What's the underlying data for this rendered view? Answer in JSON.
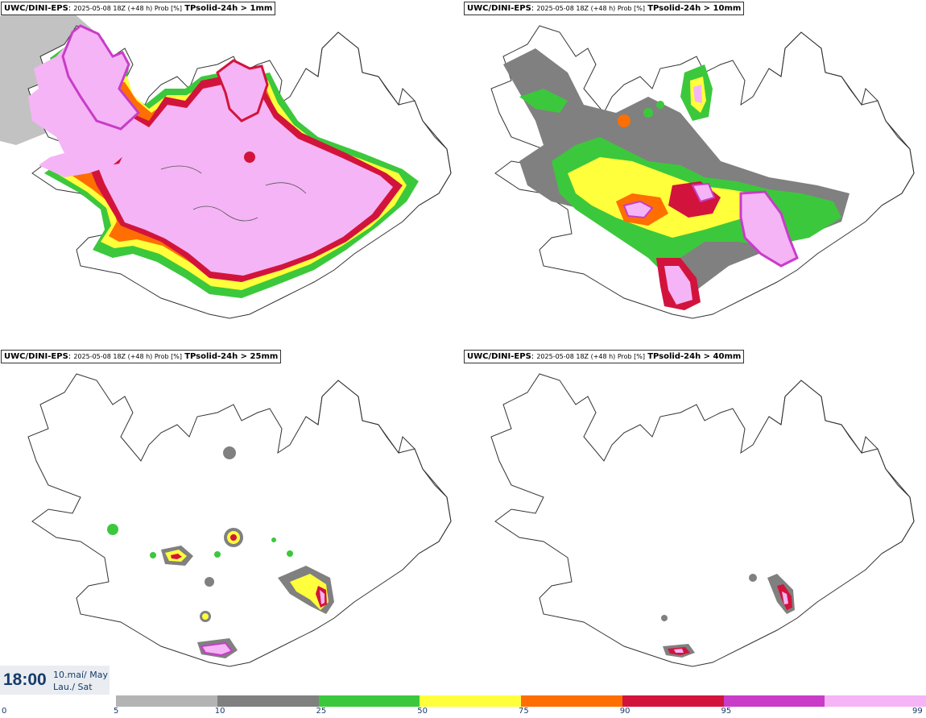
{
  "panels": [
    {
      "model": "UWC/DINI-EPS",
      "meta": "2025-05-08 18Z (+48 h) Prob [%]",
      "variable": "TPsolid-24h > 1mm"
    },
    {
      "model": "UWC/DINI-EPS",
      "meta": "2025-05-08 18Z (+48 h) Prob [%]",
      "variable": "TPsolid-24h > 10mm"
    },
    {
      "model": "UWC/DINI-EPS",
      "meta": "2025-05-08 18Z (+48 h) Prob [%]",
      "variable": "TPsolid-24h > 25mm"
    },
    {
      "model": "UWC/DINI-EPS",
      "meta": "2025-05-08 18Z (+48 h) Prob [%]",
      "variable": "TPsolid-24h > 40mm"
    }
  ],
  "valid_time": {
    "time": "18:00",
    "date_line1": "10.maí/ May",
    "date_line2": "Lau./ Sat"
  },
  "colorbar": {
    "ticks": [
      "0",
      "5",
      "10",
      "25",
      "50",
      "75",
      "90",
      "95",
      "99"
    ],
    "colors": [
      "#b4b4b4",
      "#808080",
      "#3cc83c",
      "#ffff3c",
      "#ff6e00",
      "#d2143c",
      "#c83cc8",
      "#f5b4f5"
    ]
  }
}
